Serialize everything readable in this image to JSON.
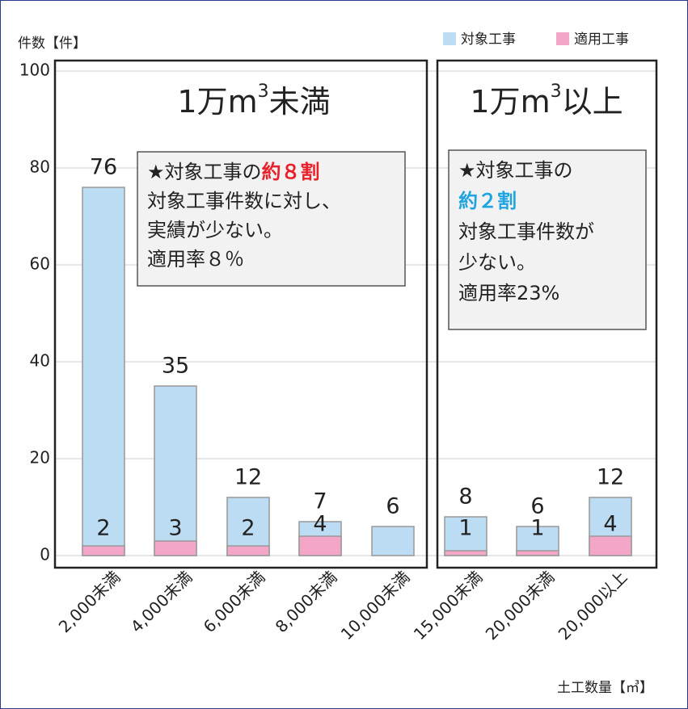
{
  "chart_data": {
    "type": "bar",
    "y_axis_label": "件数【件】",
    "x_axis_label": "土工数量【㎥】",
    "categories": [
      "2,000未満",
      "4,000未満",
      "6,000未満",
      "8,000未満",
      "10,000未満",
      "15,000未満",
      "20,000未満",
      "20,000以上"
    ],
    "series": [
      {
        "name": "対象工事",
        "color": "#bcdcf4",
        "values": [
          76,
          35,
          12,
          7,
          6,
          8,
          6,
          12
        ]
      },
      {
        "name": "適用工事",
        "color": "#f4a6c9",
        "values": [
          2,
          3,
          2,
          4,
          null,
          1,
          1,
          4
        ]
      }
    ],
    "ylim": [
      0,
      100
    ],
    "yticks": [
      0,
      20,
      40,
      60,
      80,
      100
    ],
    "grid": true,
    "groups": [
      {
        "label": [
          "1万m",
          "3",
          "未満"
        ]
      },
      {
        "label": [
          "1万m",
          "3",
          "以上"
        ]
      }
    ],
    "annotations": [
      {
        "lines": [
          [
            "★対象工事の",
            "約８割"
          ],
          [
            "対象工事件数に対し、"
          ],
          [
            "実績が少ない。"
          ],
          [
            "適用率８％"
          ]
        ]
      },
      {
        "lines": [
          [
            "★対象工事の"
          ],
          [
            "約２割"
          ],
          [
            "対象工事件数が"
          ],
          [
            "少ない。"
          ],
          [
            "適用率23%"
          ]
        ]
      }
    ]
  }
}
